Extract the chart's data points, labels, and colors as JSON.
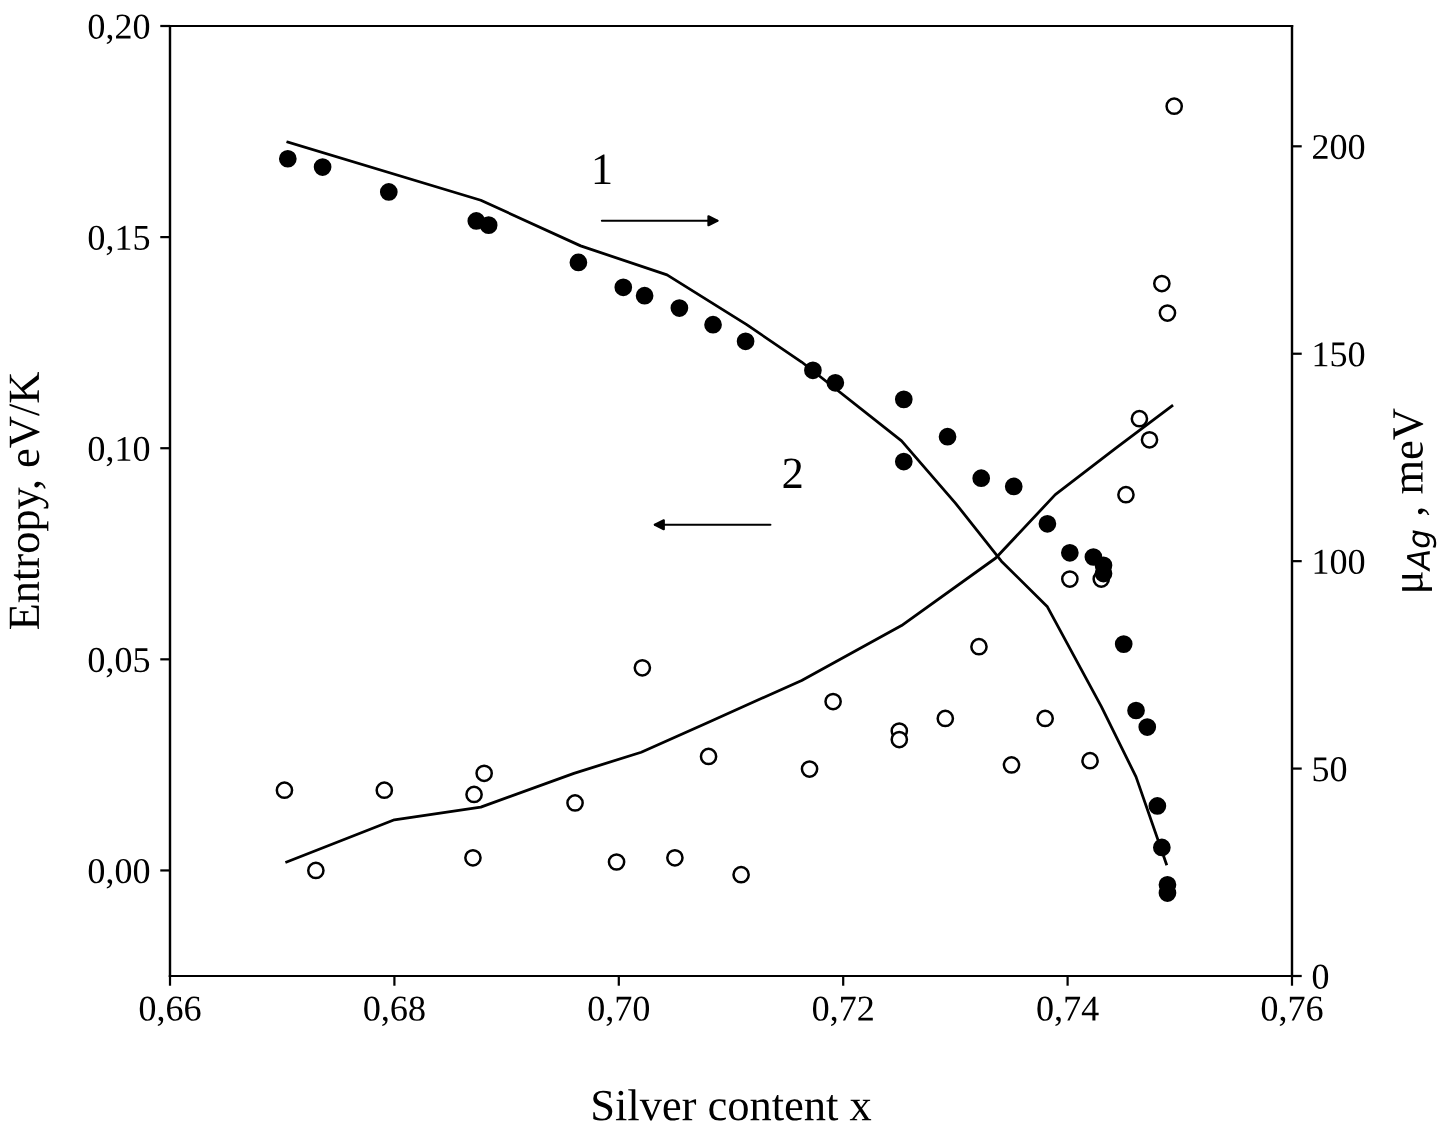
{
  "chart_data": {
    "type": "scatter",
    "xlabel": "Silver content x",
    "ylabel": "Entropy, eV/K",
    "y2label": "μ$_{Ag}$ , meV",
    "xlim": [
      0.66,
      0.76
    ],
    "xticks": [
      {
        "value": 0.66,
        "label": "0,66"
      },
      {
        "value": 0.68,
        "label": "0,68"
      },
      {
        "value": 0.7,
        "label": "0,70"
      },
      {
        "value": 0.72,
        "label": "0,72"
      },
      {
        "value": 0.74,
        "label": "0,74"
      },
      {
        "value": 0.76,
        "label": "0,76"
      }
    ],
    "ylim": [
      -0.025,
      0.2
    ],
    "yticks": [
      {
        "value": 0.0,
        "label": "0,00"
      },
      {
        "value": 0.05,
        "label": "0,05"
      },
      {
        "value": 0.1,
        "label": "0,10"
      },
      {
        "value": 0.15,
        "label": "0,15"
      },
      {
        "value": 0.2,
        "label": "0,20"
      }
    ],
    "y2lim": [
      0,
      229
    ],
    "y2ticks": [
      0,
      50,
      100,
      150,
      200
    ],
    "grid": false,
    "series": [
      {
        "axis": "y2",
        "marker": "circle",
        "color": "#000000",
        "x": [
          0.6705,
          0.6736,
          0.6795,
          0.6873,
          0.6884,
          0.6964,
          0.7004,
          0.7023,
          0.7054,
          0.7084,
          0.7113,
          0.7173,
          0.7193,
          0.7254,
          0.7254,
          0.7293,
          0.7323,
          0.7352,
          0.7382,
          0.7402,
          0.7423,
          0.7432,
          0.7432,
          0.745,
          0.7461,
          0.7471,
          0.748,
          0.7484,
          0.7489,
          0.7489
        ],
        "values": [
          197,
          195,
          189,
          182,
          181,
          172,
          166,
          164,
          161,
          157,
          153,
          146,
          143,
          139,
          124,
          130,
          120,
          118,
          109,
          102,
          101,
          99,
          97,
          80,
          64,
          60,
          41,
          31,
          22,
          20
        ]
      },
      {
        "axis": "y",
        "marker": "circle",
        "color": "#ffffff",
        "x": [
          0.6702,
          0.673,
          0.6791,
          0.6871,
          0.688,
          0.687,
          0.6961,
          0.6998,
          0.7021,
          0.705,
          0.708,
          0.7109,
          0.717,
          0.7191,
          0.725,
          0.725,
          0.7291,
          0.7321,
          0.735,
          0.738,
          0.7402,
          0.743,
          0.742,
          0.7452,
          0.7464,
          0.7473,
          0.7484,
          0.7489,
          0.7495
        ],
        "values": [
          0.019,
          0.0,
          0.019,
          0.018,
          0.023,
          0.003,
          0.016,
          0.002,
          0.048,
          0.003,
          0.027,
          -0.001,
          0.024,
          0.04,
          0.033,
          0.031,
          0.036,
          0.053,
          0.025,
          0.036,
          0.069,
          0.069,
          0.026,
          0.089,
          0.107,
          0.102,
          0.139,
          0.132,
          0.181
        ]
      },
      {
        "type": "line",
        "axis": "y2",
        "marker": "none",
        "color": "#000000",
        "x": [
          0.6705,
          0.6877,
          0.6966,
          0.7043,
          0.7114,
          0.7163,
          0.7252,
          0.73,
          0.7341,
          0.7382,
          0.743,
          0.7461,
          0.7488
        ],
        "values": [
          201,
          187,
          176,
          169,
          157,
          148,
          129,
          114,
          100,
          89,
          65,
          48,
          27
        ]
      },
      {
        "type": "line",
        "axis": "y",
        "marker": "none",
        "color": "#000000",
        "x": [
          0.6704,
          0.68,
          0.6877,
          0.696,
          0.702,
          0.7079,
          0.7163,
          0.7252,
          0.7336,
          0.7389,
          0.7443,
          0.7493
        ],
        "values": [
          0.002,
          0.012,
          0.015,
          0.023,
          0.028,
          0.035,
          0.045,
          0.058,
          0.074,
          0.089,
          0.1,
          0.11
        ]
      }
    ],
    "annotations": [
      "1",
      "2"
    ]
  }
}
